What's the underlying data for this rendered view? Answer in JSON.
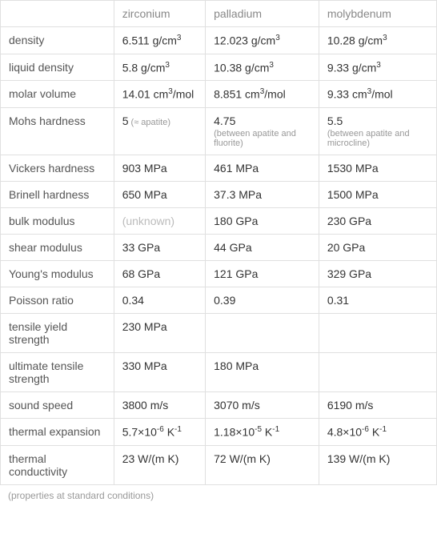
{
  "table": {
    "columns": [
      "zirconium",
      "palladium",
      "molybdenum"
    ],
    "rows": [
      {
        "label": "density",
        "cells": [
          {
            "value": "6.511 g/cm",
            "sup": "3"
          },
          {
            "value": "12.023 g/cm",
            "sup": "3"
          },
          {
            "value": "10.28 g/cm",
            "sup": "3"
          }
        ]
      },
      {
        "label": "liquid density",
        "cells": [
          {
            "value": "5.8 g/cm",
            "sup": "3"
          },
          {
            "value": "10.38 g/cm",
            "sup": "3"
          },
          {
            "value": "9.33 g/cm",
            "sup": "3"
          }
        ]
      },
      {
        "label": "molar volume",
        "cells": [
          {
            "value": "14.01 cm",
            "sup": "3",
            "suffix": "/mol"
          },
          {
            "value": "8.851 cm",
            "sup": "3",
            "suffix": "/mol"
          },
          {
            "value": "9.33 cm",
            "sup": "3",
            "suffix": "/mol"
          }
        ]
      },
      {
        "label": "Mohs hardness",
        "cells": [
          {
            "value": "5",
            "note_inline": " (≈ apatite)"
          },
          {
            "value": "4.75",
            "note": "(between apatite and fluorite)"
          },
          {
            "value": "5.5",
            "note": "(between apatite and microcline)"
          }
        ]
      },
      {
        "label": "Vickers hardness",
        "cells": [
          {
            "value": "903 MPa"
          },
          {
            "value": "461 MPa"
          },
          {
            "value": "1530 MPa"
          }
        ]
      },
      {
        "label": "Brinell hardness",
        "cells": [
          {
            "value": "650 MPa"
          },
          {
            "value": "37.3 MPa"
          },
          {
            "value": "1500 MPa"
          }
        ]
      },
      {
        "label": "bulk modulus",
        "cells": [
          {
            "value": "(unknown)",
            "unknown": true
          },
          {
            "value": "180 GPa"
          },
          {
            "value": "230 GPa"
          }
        ]
      },
      {
        "label": "shear modulus",
        "cells": [
          {
            "value": "33 GPa"
          },
          {
            "value": "44 GPa"
          },
          {
            "value": "20 GPa"
          }
        ]
      },
      {
        "label": "Young's modulus",
        "cells": [
          {
            "value": "68 GPa"
          },
          {
            "value": "121 GPa"
          },
          {
            "value": "329 GPa"
          }
        ]
      },
      {
        "label": "Poisson ratio",
        "cells": [
          {
            "value": "0.34"
          },
          {
            "value": "0.39"
          },
          {
            "value": "0.31"
          }
        ]
      },
      {
        "label": "tensile yield strength",
        "cells": [
          {
            "value": "230 MPa"
          },
          {
            "value": ""
          },
          {
            "value": ""
          }
        ]
      },
      {
        "label": "ultimate tensile strength",
        "cells": [
          {
            "value": "330 MPa"
          },
          {
            "value": "180 MPa"
          },
          {
            "value": ""
          }
        ]
      },
      {
        "label": "sound speed",
        "cells": [
          {
            "value": "3800 m/s"
          },
          {
            "value": "3070 m/s"
          },
          {
            "value": "6190 m/s"
          }
        ]
      },
      {
        "label": "thermal expansion",
        "cells": [
          {
            "value": "5.7×10",
            "sup": "-6",
            "suffix": " K",
            "sup2": "-1"
          },
          {
            "value": "1.18×10",
            "sup": "-5",
            "suffix": " K",
            "sup2": "-1"
          },
          {
            "value": "4.8×10",
            "sup": "-6",
            "suffix": " K",
            "sup2": "-1"
          }
        ]
      },
      {
        "label": "thermal conductivity",
        "cells": [
          {
            "value": "23 W/(m K)"
          },
          {
            "value": "72 W/(m K)"
          },
          {
            "value": "139 W/(m K)"
          }
        ]
      }
    ],
    "footer": "(properties at standard conditions)",
    "column_widths": [
      "26%",
      "21%",
      "26%",
      "27%"
    ],
    "styling": {
      "border_color": "#e0e0e0",
      "background_color": "#ffffff",
      "text_color": "#333333",
      "header_color": "#888888",
      "note_color": "#999999",
      "unknown_color": "#bbbbbb",
      "font_size": 14,
      "font_family": "Arial"
    }
  }
}
